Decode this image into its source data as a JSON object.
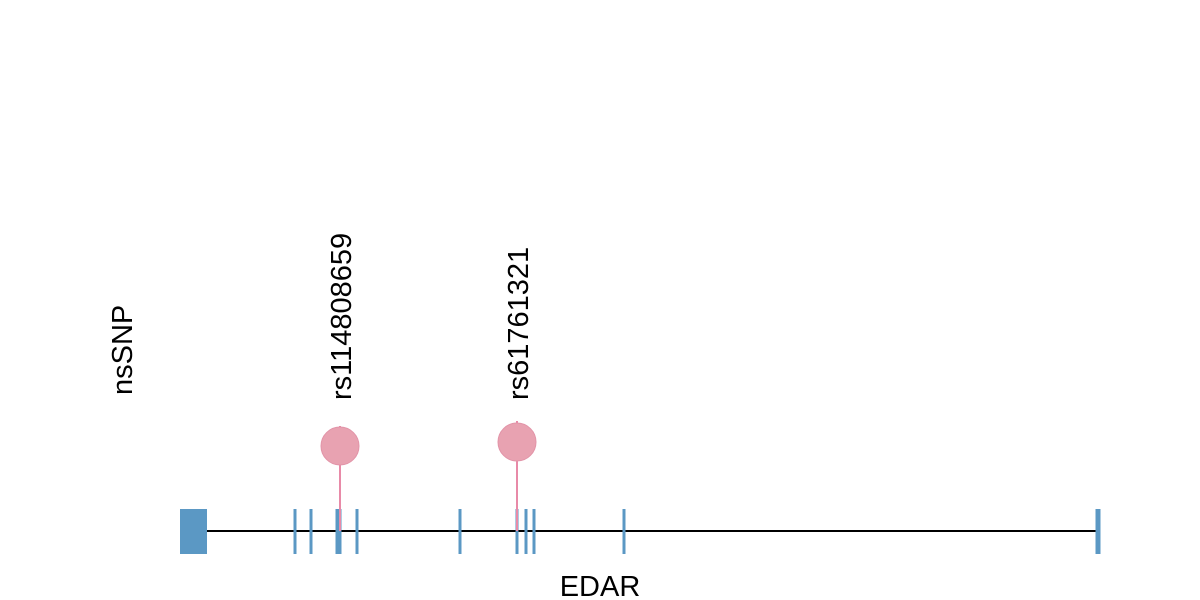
{
  "track_label": "nsSNP",
  "gene": {
    "name": "EDAR"
  },
  "snps": [
    {
      "label": "rs114808659"
    },
    {
      "label": "rs61761321"
    }
  ]
}
